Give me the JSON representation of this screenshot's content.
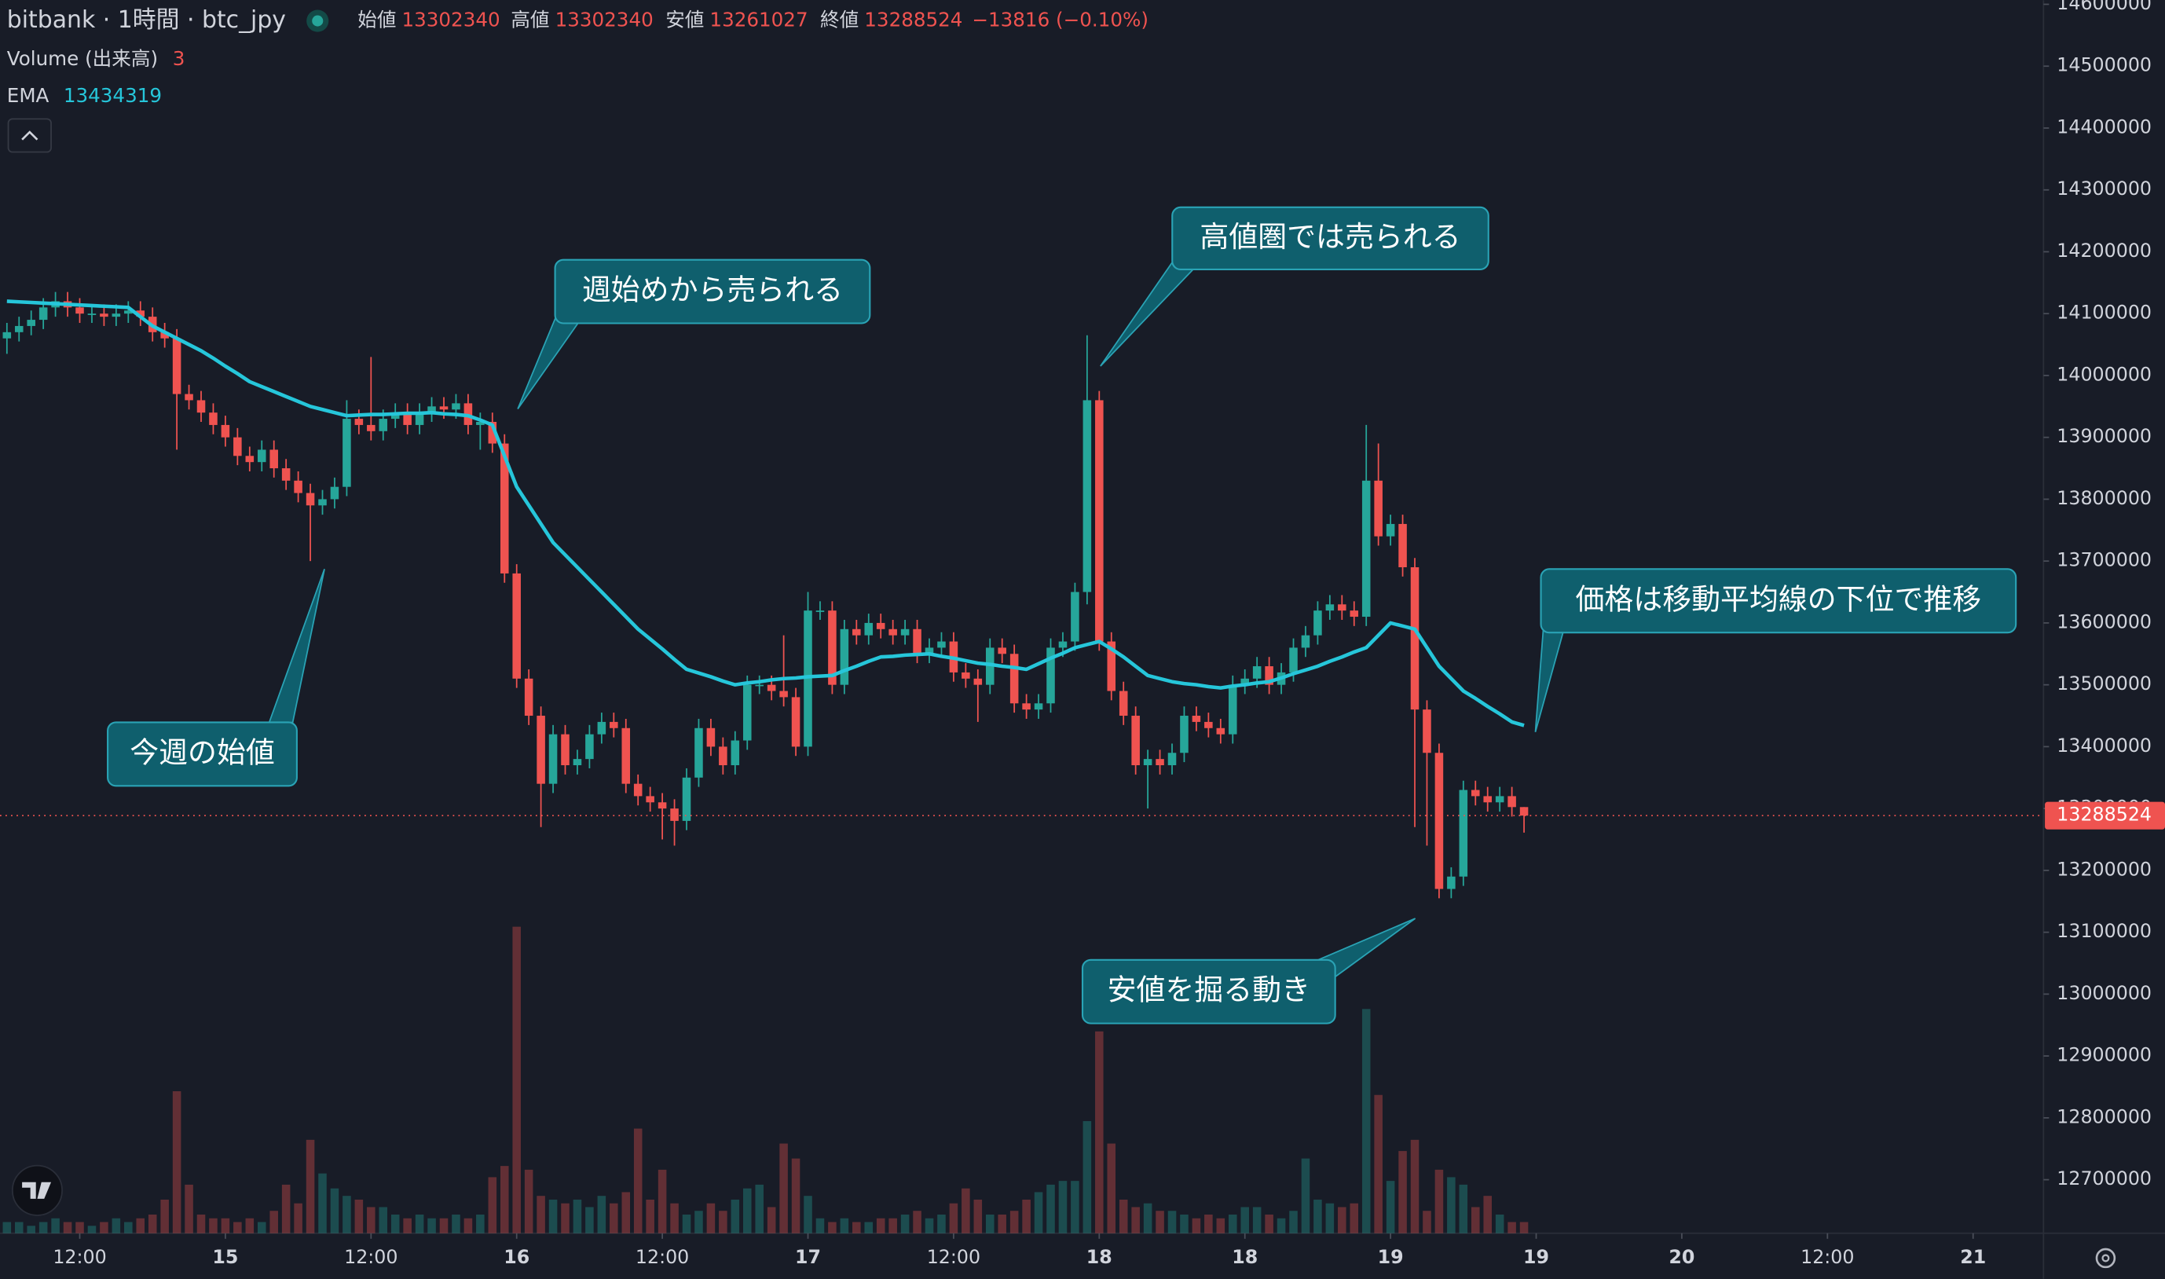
{
  "chart_data": {
    "type": "candlestick",
    "title": "bitbank · 1時間 · btc_jpy",
    "ohlc_labels": {
      "open": "始値",
      "high": "高値",
      "low": "安値",
      "close": "終値"
    },
    "change_label": "−13816 (−0.10%)",
    "volume_label": "Volume (出来高)",
    "ema_label": "EMA",
    "up_color": "#26a69a",
    "down_color": "#ef5350",
    "ema_color": "#26c6da",
    "grid": false,
    "open": [
      14060000,
      14070000,
      14080000,
      14090000,
      14110000,
      14120000,
      14110000,
      14100000,
      14100000,
      14095000,
      14100000,
      14105000,
      14095000,
      14070000,
      14060000,
      13970000,
      13960000,
      13940000,
      13920000,
      13900000,
      13870000,
      13860000,
      13880000,
      13850000,
      13830000,
      13810000,
      13790000,
      13800000,
      13820000,
      13930000,
      13920000,
      13910000,
      13930000,
      13940000,
      13920000,
      13940000,
      13950000,
      13945000,
      13955000,
      13920000,
      13925000,
      13890000,
      13680000,
      13510000,
      13450000,
      13340000,
      13420000,
      13370000,
      13380000,
      13420000,
      13440000,
      13430000,
      13340000,
      13320000,
      13310000,
      13300000,
      13280000,
      13350000,
      13430000,
      13400000,
      13370000,
      13410000,
      13500000,
      13500000,
      13490000,
      13480000,
      13400000,
      13620000,
      13620000,
      13500000,
      13590000,
      13580000,
      13600000,
      13590000,
      13580000,
      13590000,
      13550000,
      13560000,
      13570000,
      13520000,
      13510000,
      13500000,
      13560000,
      13550000,
      13470000,
      13460000,
      13470000,
      13560000,
      13570000,
      13650000,
      13960000,
      13570000,
      13490000,
      13450000,
      13370000,
      13380000,
      13370000,
      13390000,
      13450000,
      13440000,
      13430000,
      13420000,
      13500000,
      13510000,
      13530000,
      13500000,
      13520000,
      13560000,
      13580000,
      13620000,
      13630000,
      13620000,
      13610000,
      13830000,
      13740000,
      13760000,
      13690000,
      13460000,
      13390000,
      13170000,
      13190000,
      13330000,
      13320000,
      13310000,
      13320000,
      13302340
    ],
    "high": [
      14085000,
      14095000,
      14105000,
      14125000,
      14135000,
      14135000,
      14125000,
      14115000,
      14115000,
      14115000,
      14120000,
      14120000,
      14110000,
      14085000,
      14075000,
      13985000,
      13975000,
      13955000,
      13935000,
      13915000,
      13885000,
      13895000,
      13895000,
      13865000,
      13845000,
      13825000,
      13815000,
      13835000,
      13960000,
      13945000,
      14030000,
      13945000,
      13955000,
      13955000,
      13955000,
      13965000,
      13965000,
      13970000,
      13970000,
      13940000,
      13940000,
      13905000,
      13695000,
      13525000,
      13465000,
      13435000,
      13435000,
      13395000,
      13435000,
      13455000,
      13455000,
      13445000,
      13355000,
      13335000,
      13325000,
      13315000,
      13365000,
      13445000,
      13445000,
      13415000,
      13425000,
      13515000,
      13515000,
      13515000,
      13580000,
      13495000,
      13650000,
      13635000,
      13635000,
      13605000,
      13605000,
      13615000,
      13615000,
      13605000,
      13605000,
      13605000,
      13575000,
      13585000,
      13585000,
      13535000,
      13525000,
      13575000,
      13575000,
      13565000,
      13485000,
      13485000,
      13575000,
      13585000,
      13665000,
      14065000,
      13975000,
      13585000,
      13505000,
      13465000,
      13395000,
      13395000,
      13405000,
      13465000,
      13465000,
      13455000,
      13445000,
      13515000,
      13525000,
      13545000,
      13545000,
      13535000,
      13575000,
      13595000,
      13635000,
      13645000,
      13645000,
      13635000,
      13920000,
      13890000,
      13775000,
      13775000,
      13705000,
      13475000,
      13405000,
      13205000,
      13345000,
      13345000,
      13335000,
      13335000,
      13335000,
      13302340
    ],
    "low": [
      14035000,
      14055000,
      14065000,
      14075000,
      14095000,
      14095000,
      14085000,
      14085000,
      14080000,
      14080000,
      14085000,
      14080000,
      14055000,
      14045000,
      13880000,
      13945000,
      13925000,
      13905000,
      13885000,
      13855000,
      13845000,
      13845000,
      13835000,
      13815000,
      13795000,
      13700000,
      13775000,
      13785000,
      13805000,
      13905000,
      13895000,
      13895000,
      13915000,
      13905000,
      13905000,
      13925000,
      13930000,
      13930000,
      13905000,
      13880000,
      13875000,
      13665000,
      13495000,
      13435000,
      13270000,
      13325000,
      13355000,
      13355000,
      13365000,
      13405000,
      13415000,
      13325000,
      13305000,
      13295000,
      13250000,
      13240000,
      13265000,
      13335000,
      13385000,
      13355000,
      13355000,
      13395000,
      13485000,
      13475000,
      13465000,
      13385000,
      13385000,
      13605000,
      13485000,
      13485000,
      13565000,
      13565000,
      13575000,
      13565000,
      13565000,
      13535000,
      13535000,
      13545000,
      13505000,
      13495000,
      13440000,
      13485000,
      13535000,
      13455000,
      13445000,
      13445000,
      13455000,
      13545000,
      13555000,
      13630000,
      13555000,
      13475000,
      13435000,
      13355000,
      13300000,
      13355000,
      13355000,
      13375000,
      13425000,
      13415000,
      13405000,
      13405000,
      13485000,
      13495000,
      13485000,
      13485000,
      13505000,
      13545000,
      13565000,
      13605000,
      13605000,
      13595000,
      13595000,
      13725000,
      13725000,
      13675000,
      13270000,
      13240000,
      13155000,
      13155000,
      13175000,
      13305000,
      13295000,
      13295000,
      13287000,
      13261027
    ],
    "close": [
      14070000,
      14080000,
      14090000,
      14110000,
      14120000,
      14110000,
      14100000,
      14100000,
      14095000,
      14100000,
      14105000,
      14095000,
      14070000,
      14060000,
      13970000,
      13960000,
      13940000,
      13920000,
      13900000,
      13870000,
      13860000,
      13880000,
      13850000,
      13830000,
      13810000,
      13790000,
      13800000,
      13820000,
      13930000,
      13920000,
      13910000,
      13930000,
      13940000,
      13920000,
      13940000,
      13950000,
      13945000,
      13955000,
      13920000,
      13925000,
      13890000,
      13680000,
      13510000,
      13450000,
      13340000,
      13420000,
      13370000,
      13380000,
      13420000,
      13440000,
      13430000,
      13340000,
      13320000,
      13310000,
      13300000,
      13280000,
      13350000,
      13430000,
      13400000,
      13370000,
      13410000,
      13500000,
      13500000,
      13490000,
      13480000,
      13400000,
      13620000,
      13620000,
      13500000,
      13590000,
      13580000,
      13600000,
      13590000,
      13580000,
      13590000,
      13550000,
      13560000,
      13570000,
      13520000,
      13510000,
      13500000,
      13560000,
      13550000,
      13470000,
      13460000,
      13470000,
      13560000,
      13570000,
      13650000,
      13960000,
      13570000,
      13490000,
      13450000,
      13370000,
      13380000,
      13370000,
      13390000,
      13450000,
      13440000,
      13430000,
      13420000,
      13500000,
      13510000,
      13530000,
      13500000,
      13520000,
      13560000,
      13580000,
      13620000,
      13630000,
      13620000,
      13610000,
      13830000,
      13740000,
      13760000,
      13690000,
      13460000,
      13390000,
      13170000,
      13190000,
      13330000,
      13320000,
      13310000,
      13320000,
      13302340,
      13288524
    ],
    "volume": [
      3,
      3,
      2,
      3,
      4,
      3,
      3,
      2,
      3,
      4,
      3,
      4,
      5,
      9,
      38,
      13,
      5,
      4,
      4,
      3,
      4,
      3,
      6,
      13,
      8,
      25,
      16,
      12,
      10,
      9,
      7,
      7,
      5,
      4,
      5,
      4,
      4,
      5,
      4,
      5,
      15,
      18,
      82,
      17,
      10,
      9,
      8,
      9,
      7,
      10,
      8,
      11,
      28,
      9,
      17,
      8,
      5,
      6,
      8,
      6,
      9,
      12,
      13,
      7,
      24,
      20,
      10,
      4,
      3,
      4,
      3,
      3,
      4,
      4,
      5,
      6,
      4,
      5,
      8,
      12,
      9,
      5,
      5,
      6,
      9,
      11,
      13,
      14,
      14,
      30,
      54,
      24,
      9,
      7,
      8,
      6,
      6,
      5,
      4,
      5,
      4,
      5,
      7,
      7,
      5,
      4,
      6,
      20,
      9,
      8,
      7,
      8,
      60,
      37,
      14,
      22,
      25,
      6,
      17,
      15,
      13,
      7,
      10,
      5,
      3,
      3
    ],
    "ema": [
      14120000,
      14119000,
      14118000,
      14117000,
      14116000,
      14115000,
      14114000,
      14113000,
      14112000,
      14111000,
      14110000,
      14095000,
      14080000,
      14070000,
      14060000,
      14050000,
      14040000,
      14028000,
      14015000,
      14003000,
      13990000,
      13982000,
      13974000,
      13966000,
      13958000,
      13950000,
      13945000,
      13940000,
      13935000,
      13936000,
      13937000,
      13937000,
      13938000,
      13939000,
      13939000,
      13940000,
      13938000,
      13937000,
      13935000,
      13928000,
      13920000,
      13870000,
      13820000,
      13790000,
      13760000,
      13730000,
      13710000,
      13690000,
      13670000,
      13650000,
      13630000,
      13610000,
      13590000,
      13574000,
      13558000,
      13541000,
      13525000,
      13519000,
      13513000,
      13506000,
      13500000,
      13503000,
      13505000,
      13508000,
      13510000,
      13511000,
      13513000,
      13514000,
      13515000,
      13523000,
      13530000,
      13538000,
      13545000,
      13546000,
      13548000,
      13549000,
      13550000,
      13546000,
      13543000,
      13539000,
      13535000,
      13533000,
      13530000,
      13528000,
      13525000,
      13534000,
      13543000,
      13551000,
      13560000,
      13565000,
      13570000,
      13558000,
      13545000,
      13530000,
      13515000,
      13510000,
      13505000,
      13502000,
      13500000,
      13497000,
      13495000,
      13498000,
      13500000,
      13503000,
      13505000,
      13511000,
      13518000,
      13524000,
      13530000,
      13538000,
      13545000,
      13553000,
      13560000,
      13580000,
      13600000,
      13595000,
      13590000,
      13560000,
      13530000,
      13510000,
      13490000,
      13478000,
      13465000,
      13453000,
      13440000,
      13434319
    ],
    "xlim": [
      -0.57,
      167.8
    ],
    "xticks": [
      {
        "value": 6,
        "label": "12:00"
      },
      {
        "value": 18,
        "label": "15"
      },
      {
        "value": 30,
        "label": "12:00"
      },
      {
        "value": 42,
        "label": "16"
      },
      {
        "value": 54,
        "label": "12:00"
      },
      {
        "value": 66,
        "label": "17"
      },
      {
        "value": 78,
        "label": "12:00"
      },
      {
        "value": 90,
        "label": "18"
      },
      {
        "value": 102,
        "label": "18"
      },
      {
        "value": 114,
        "label": "19"
      },
      {
        "value": 126,
        "label": "19"
      },
      {
        "value": 138,
        "label": "20"
      },
      {
        "value": 150,
        "label": "12:00"
      },
      {
        "value": 162,
        "label": "21"
      }
    ],
    "ylim": [
      12613400,
      14606700
    ],
    "yticks": [
      12700000,
      12800000,
      12900000,
      13000000,
      13100000,
      13200000,
      13300000,
      13400000,
      13500000,
      13600000,
      13700000,
      13800000,
      13900000,
      14000000,
      14100000,
      14200000,
      14300000,
      14400000,
      14500000,
      14600000
    ],
    "annotations": [
      "週始めから売られる",
      "高値圏では売られる",
      "価格は移動平均線の下位で推移",
      "今週の始値",
      "安値を掘る動き"
    ]
  }
}
